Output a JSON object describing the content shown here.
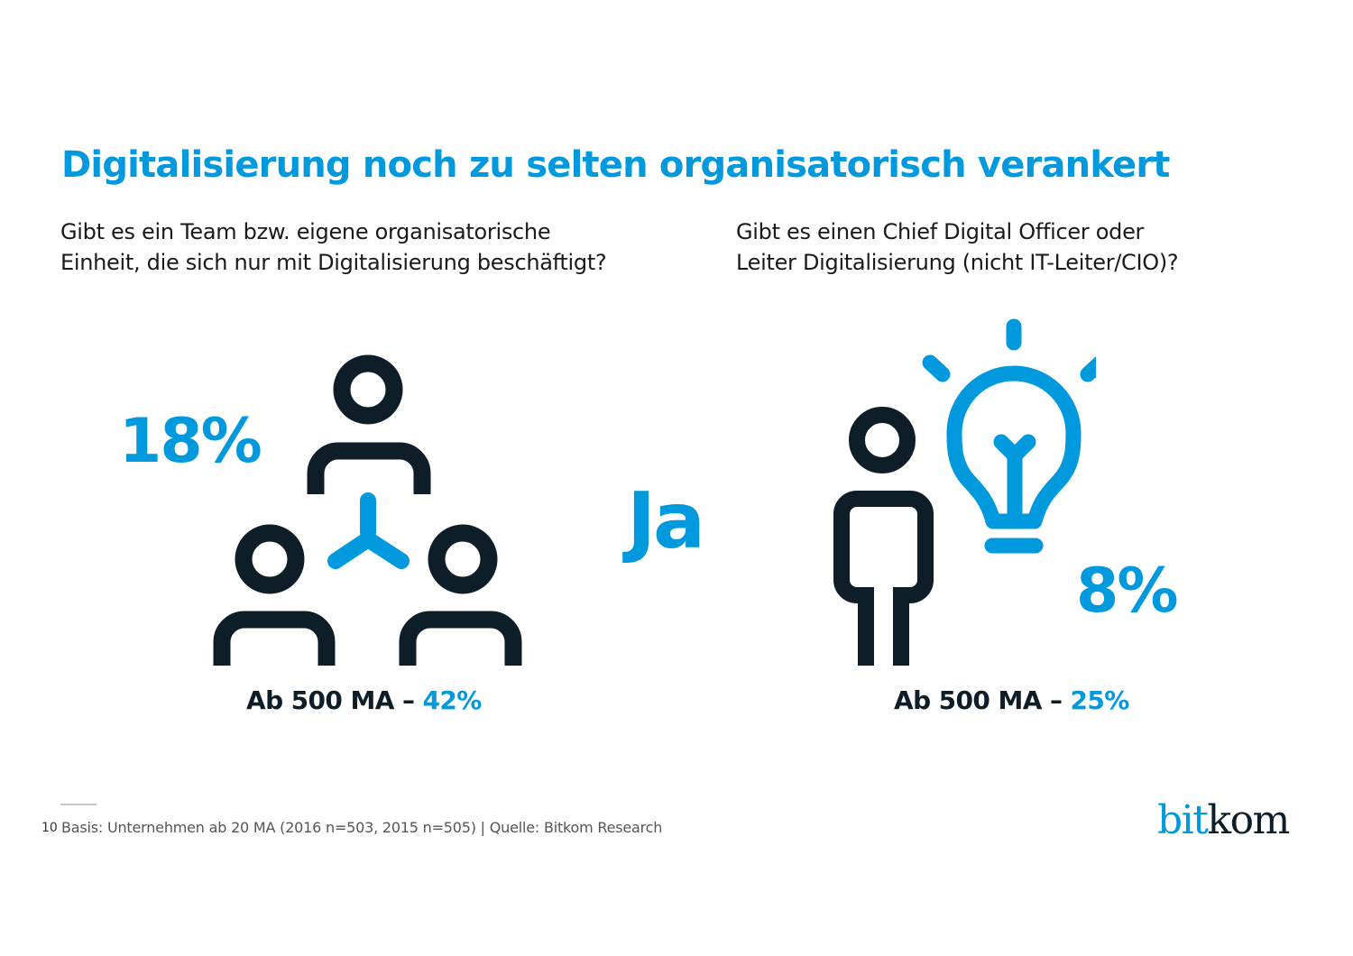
{
  "title": "Digitalisierung noch zu selten organisatorisch verankert",
  "colors": {
    "accent": "#0099dd",
    "dark": "#0e1e28"
  },
  "left_panel": {
    "question_line1": "Gibt es ein Team bzw. eigene organisatorische",
    "question_line2": "Einheit, die sich nur mit Digitalisierung beschäftigt?",
    "value": "18%",
    "icon": "team-network-icon",
    "sub_label": "Ab 500 MA –",
    "sub_value": "42%"
  },
  "center_label": "Ja",
  "right_panel": {
    "question_line1": "Gibt es einen Chief Digital Officer oder",
    "question_line2": "Leiter Digitalisierung (nicht IT-Leiter/CIO)?",
    "value": "8%",
    "icon": "person-lightbulb-icon",
    "sub_label": "Ab 500 MA –",
    "sub_value": "25%"
  },
  "footer": {
    "page_number": "10",
    "source": "Basis: Unternehmen ab 20 MA (2016 n=503, 2015 n=505) | Quelle: Bitkom Research"
  },
  "logo": {
    "part1": "bit",
    "part2": "kom"
  }
}
